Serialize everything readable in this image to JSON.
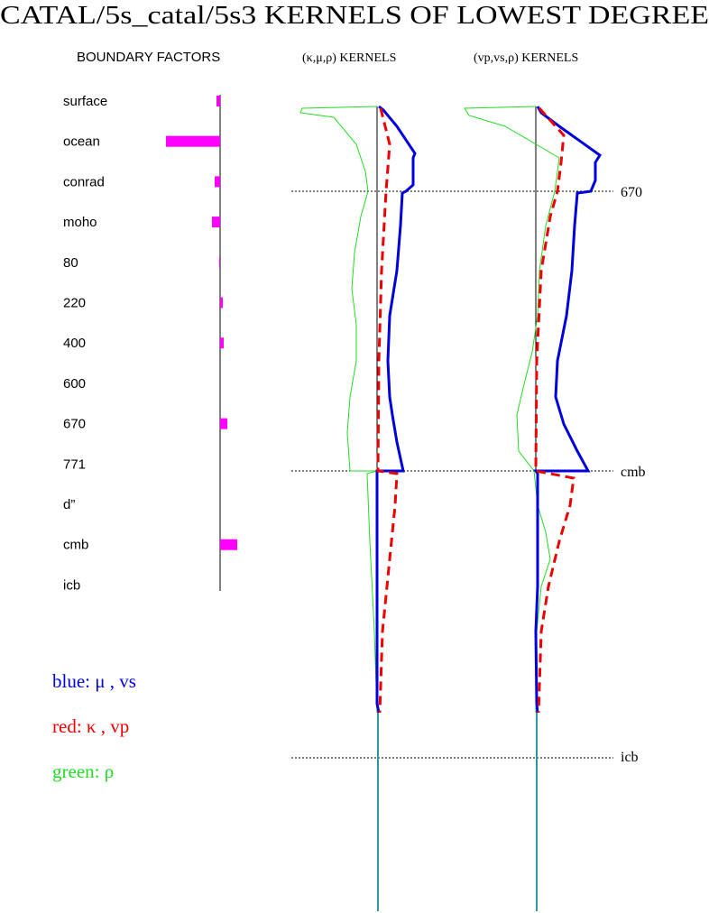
{
  "chart_data": {
    "type": "hbar",
    "title": "CATAL/5s_catal/5s3 KERNELS OF LOWEST DEGREE",
    "subtitle": "BOUNDARY FACTORS",
    "categories": [
      "surface",
      "ocean",
      "conrad",
      "moho",
      "80",
      "220",
      "400",
      "600",
      "670",
      "771",
      "d”",
      "cmb",
      "icb"
    ],
    "values": [
      -4,
      -60,
      -6,
      -9,
      -1,
      3,
      4,
      0,
      8,
      0,
      0,
      19,
      0
    ],
    "color": "#ff00ff",
    "xlim": [
      -62,
      22
    ],
    "kernel_titles": [
      "(κ,μ,ρ)  KERNELS",
      "(vp,vs,ρ)  KERNELS"
    ],
    "depth_markers": [
      "670",
      "cmb",
      "icb"
    ],
    "legend": [
      {
        "name": "blue:  μ , vs",
        "color": "#0000dd"
      },
      {
        "name": "red:  κ , vp",
        "color": "#ee0000"
      },
      {
        "name": "green:  ρ",
        "color": "#22dd22"
      }
    ]
  }
}
